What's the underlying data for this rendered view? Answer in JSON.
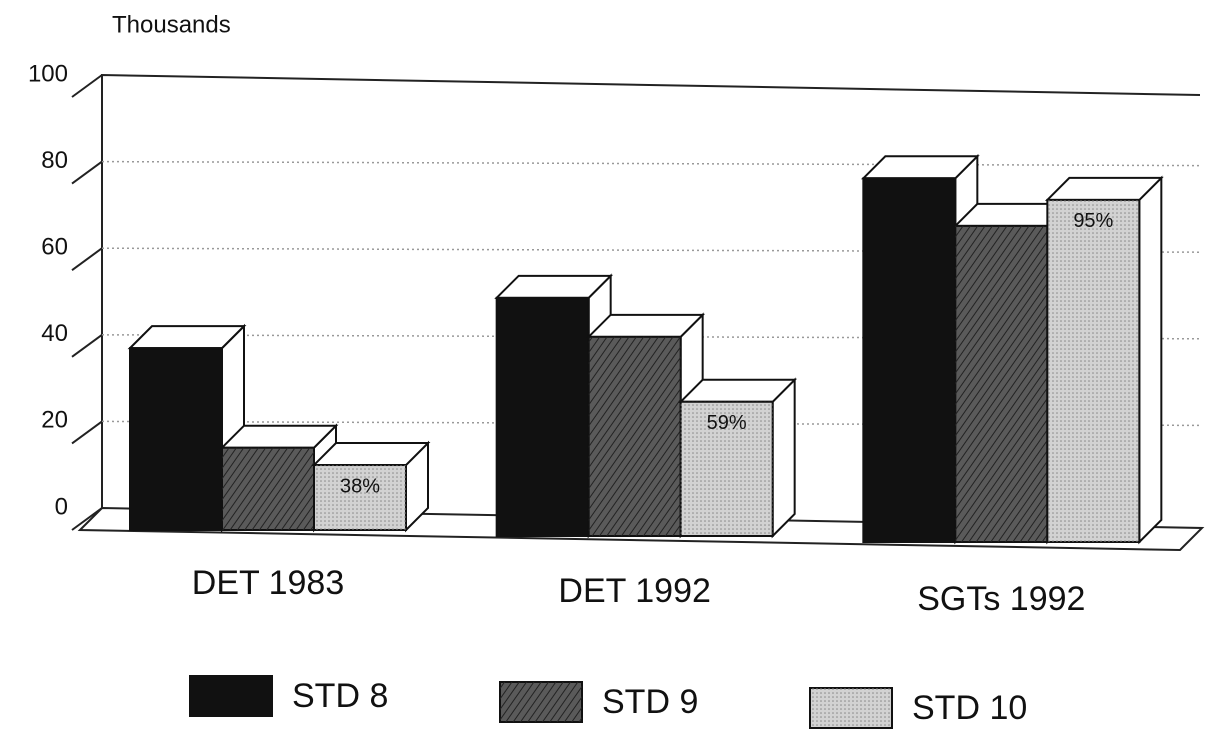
{
  "chart_data": {
    "type": "bar3d",
    "y_axis_label": "Thousands",
    "categories": [
      "DET 1983",
      "DET 1992",
      "SGTs 1992"
    ],
    "series": [
      {
        "name": "STD 8",
        "color": "#111111",
        "values": [
          42,
          55,
          84
        ]
      },
      {
        "name": "STD 9",
        "color": "#5a5a5a",
        "values": [
          19,
          46,
          73
        ]
      },
      {
        "name": "STD 10",
        "color": "#d2d2d2",
        "values": [
          15,
          31,
          79
        ]
      }
    ],
    "annotations": [
      "38%",
      "59%",
      "95%"
    ],
    "ylim": [
      0,
      100
    ],
    "yticks": [
      0,
      20,
      40,
      60,
      80,
      100
    ],
    "grid": true,
    "legend": "bottom"
  }
}
